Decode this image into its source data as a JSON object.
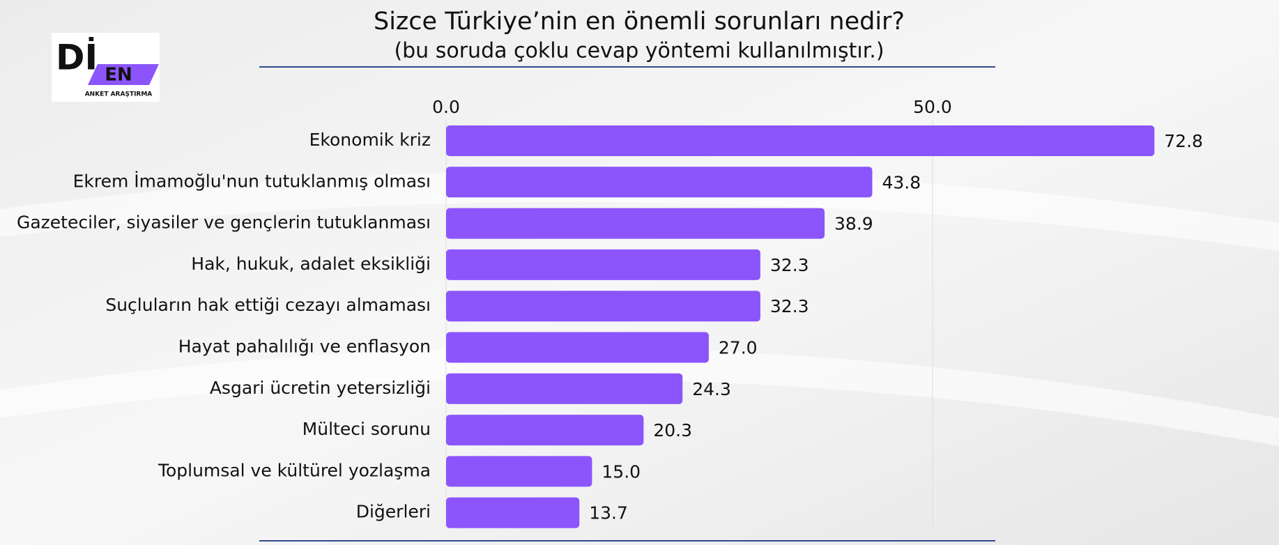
{
  "logo": {
    "mark": "Dİ",
    "badge": "EN",
    "caption": "ANKET ARAŞTIRMA"
  },
  "chart_data": {
    "type": "hbar",
    "title": "Sizce Türkiye’nin en önemli sorunları nedir?",
    "subtitle": "(bu soruda çoklu cevap yöntemi kullanılmıştır.)",
    "categories": [
      "Ekonomik kriz",
      "Ekrem İmamoğlu'nun tutuklanmış olması",
      "Gazeteciler, siyasiler ve gençlerin tutuklanması",
      "Hak, hukuk, adalet eksikliği",
      "Suçluların hak ettiği cezayı almaması",
      "Hayat pahalılığı ve enflasyon",
      "Asgari ücretin yetersizliği",
      "Mülteci sorunu",
      "Toplumsal ve kültürel yozlaşma",
      "Diğerleri"
    ],
    "values": [
      72.8,
      43.8,
      38.9,
      32.3,
      32.3,
      27.0,
      24.3,
      20.3,
      15.0,
      13.7
    ],
    "value_labels": [
      "72.8",
      "43.8",
      "38.9",
      "32.3",
      "32.3",
      "27.0",
      "24.3",
      "20.3",
      "15.0",
      "13.7"
    ],
    "color": "#8b55fb",
    "xlim": [
      0,
      80
    ],
    "xticks": [
      {
        "value": 0,
        "label": "0.0"
      },
      {
        "value": 50,
        "label": "50.0"
      }
    ],
    "grid": true
  }
}
